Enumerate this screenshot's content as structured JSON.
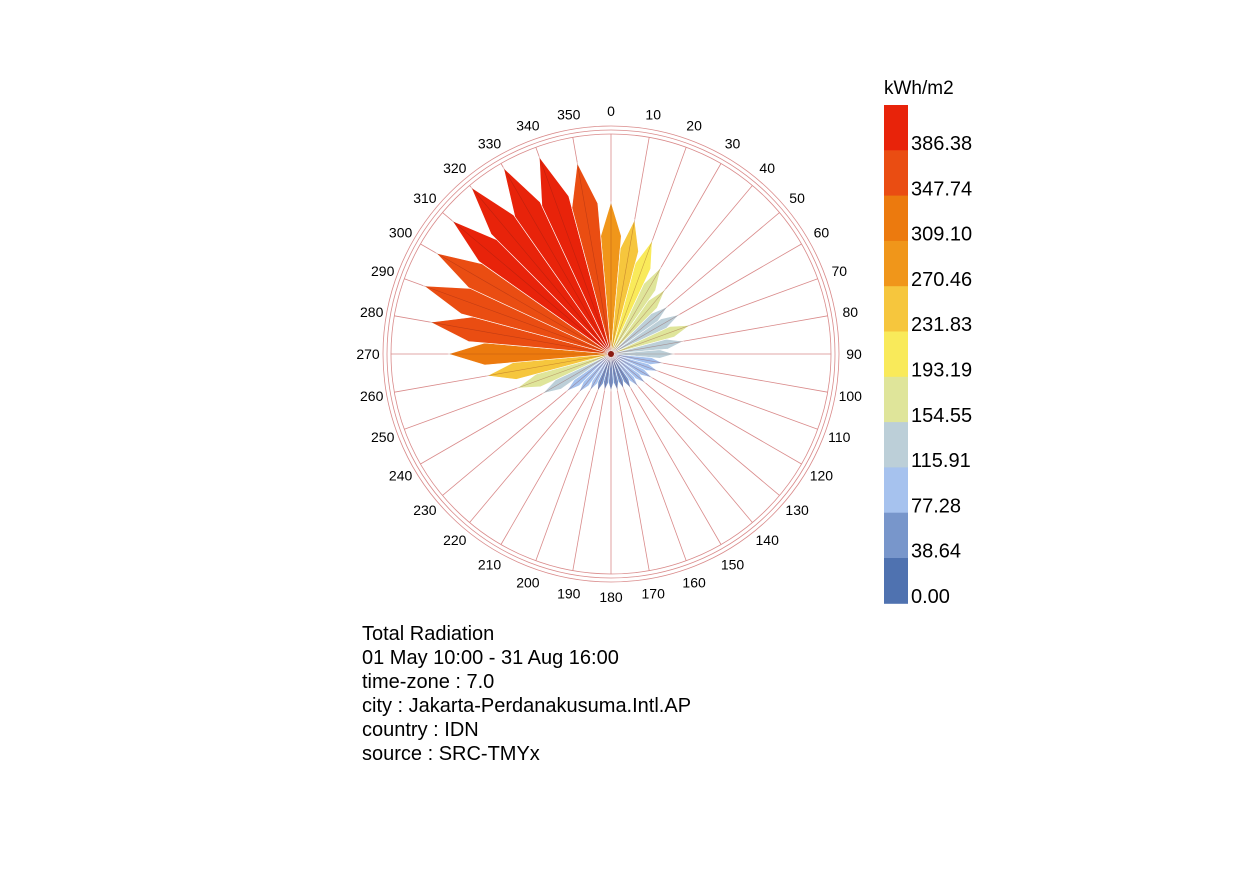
{
  "chart_data": {
    "type": "radial-bar",
    "title": "Total Radiation",
    "unit": "kWh/m2",
    "max_value": 420,
    "directions": [
      0,
      10,
      20,
      30,
      40,
      50,
      60,
      70,
      80,
      90,
      100,
      110,
      120,
      130,
      140,
      150,
      160,
      170,
      180,
      190,
      200,
      210,
      220,
      230,
      240,
      250,
      260,
      270,
      280,
      290,
      300,
      310,
      320,
      330,
      340,
      350
    ],
    "values": [
      290,
      260,
      230,
      190,
      160,
      140,
      150,
      160,
      140,
      120,
      100,
      95,
      90,
      85,
      80,
      75,
      70,
      70,
      70,
      70,
      75,
      80,
      95,
      110,
      150,
      190,
      240,
      310,
      350,
      380,
      385,
      395,
      415,
      410,
      400,
      370
    ],
    "legend": {
      "labels": [
        "386.38",
        "347.74",
        "309.10",
        "270.46",
        "231.83",
        "193.19",
        "154.55",
        "115.91",
        "77.28",
        "38.64",
        "0.00"
      ],
      "colors": [
        "#e8230a",
        "#ea4d12",
        "#ec7a0e",
        "#f0961a",
        "#f6c63d",
        "#f9ea5a",
        "#dfe59a",
        "#bccfd8",
        "#a6c2ee",
        "#7896cb",
        "#4f72b0"
      ],
      "breaks": [
        0,
        38.64,
        77.28,
        115.91,
        154.55,
        193.19,
        231.83,
        270.46,
        309.1,
        347.74,
        386.38
      ]
    }
  },
  "info": {
    "lines": [
      "Total Radiation",
      "01 May 10:00 - 31 Aug 16:00",
      "time-zone : 7.0",
      "city : Jakarta-Perdanakusuma.Intl.AP",
      "country : IDN",
      "source : SRC-TMYx"
    ]
  }
}
